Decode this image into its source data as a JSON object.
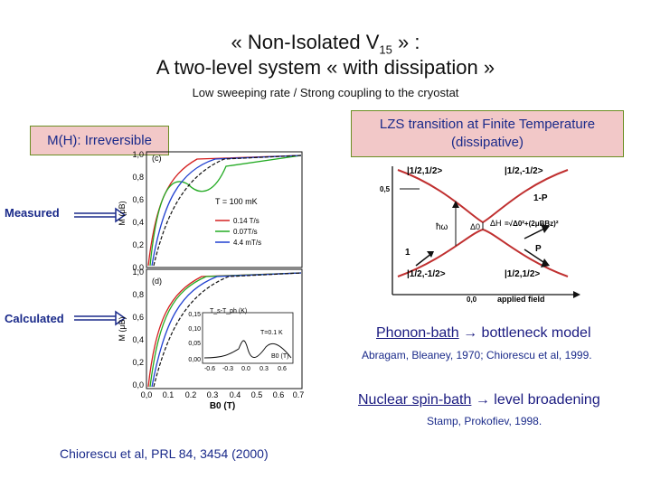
{
  "title": {
    "line1_pre": "« Non-Isolated V",
    "line1_sub": "15",
    "line1_post": " » :",
    "line2": "A  two-level system « with dissipation »"
  },
  "subtitle": "Low sweeping rate / Strong coupling to the cryostat",
  "left_box": "M(H): Irreversible",
  "right_box": "LZS transition at Finite Temperature (dissipative)",
  "side_labels": {
    "measured": "Measured",
    "calculated": "Calculated"
  },
  "top_plot": {
    "panel": "(c)",
    "ylabel": "M (μB)",
    "yticks": [
      "1,0",
      "0,8",
      "0,6",
      "0,4",
      "0,2",
      "0,0"
    ],
    "temp": "T = 100 mK",
    "legend": [
      "0.14 T/s",
      "0.07T/s",
      "4.4 mT/s"
    ]
  },
  "bottom_plot": {
    "panel": "(d)",
    "ylabel": "M (μB)",
    "yticks": [
      "1,0",
      "0,8",
      "0,6",
      "0,4",
      "0,2",
      "0,0"
    ],
    "xticks": [
      "0,0",
      "0.1",
      "0.2",
      "0.3",
      "0.4",
      "0.5",
      "0.6",
      "0.7"
    ],
    "xlabel": "B0 (T)",
    "inset_ylabel": "T_s-T_ph (K)",
    "inset_yticks": [
      "0,15",
      "0,10",
      "0,05",
      "0,00"
    ],
    "inset_xticks": [
      "-0.6",
      "-0.3",
      "0.0",
      "0.3",
      "0.6"
    ],
    "inset_xlabel": "B0 (T)",
    "inset_temp": "T=0.1 K"
  },
  "diagram": {
    "state_tl": "|1/2,1/2>",
    "state_tr": "|1/2,-1/2>",
    "state_bl": "|1/2,-1/2>",
    "state_br": "|1/2,1/2>",
    "p_upper": "1-P",
    "p_lower": "P",
    "hw": "ħω",
    "delta0": "Δ0",
    "delta_h": "ΔH",
    "formula": "=√Δ0²+(2μBBz)²",
    "one": "1",
    "origin": "0,0",
    "xlabel": "applied field",
    "arrow_label": "0,5"
  },
  "models": {
    "phonon_link": "Phonon-bath",
    "phonon_rest": " bottleneck model",
    "phonon_ref": "Abragam, Bleaney, 1970; Chiorescu et al, 1999.",
    "nuclear_link": "Nuclear spin-bath",
    "nuclear_rest": " level broadening",
    "nuclear_ref": "Stamp, Prokofiev, 1998.",
    "arrow": "→"
  },
  "citation": "Chiorescu et al, PRL 84, 3454 (2000)",
  "colors": {
    "red": "#d42020",
    "green": "#22aa22",
    "blue": "#2040d0",
    "black": "#111111",
    "navy": "#1a2a8a"
  }
}
